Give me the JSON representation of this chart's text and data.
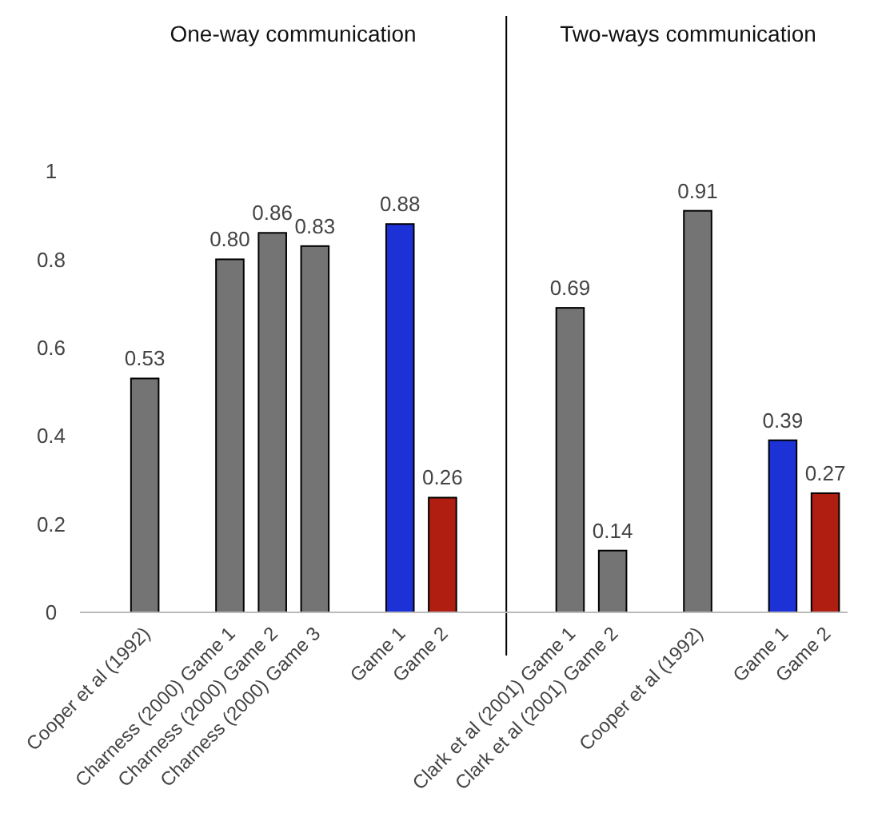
{
  "chart_data": {
    "type": "bar",
    "categories": [
      null,
      "Cooper et al (1992)",
      null,
      "Charness (2000) Game 1",
      "Charness (2000) Game 2",
      "Charness (2000) Game 3",
      null,
      "Game 1",
      "Game 2",
      null,
      null,
      "Clark et al (2001) Game 1",
      "Clark et al (2001) Game 2",
      null,
      "Cooper et al (1992)",
      null,
      "Game 1",
      "Game 2"
    ],
    "values": [
      null,
      0.53,
      null,
      0.8,
      0.86,
      0.83,
      null,
      0.88,
      0.26,
      null,
      null,
      0.69,
      0.14,
      null,
      0.91,
      null,
      0.39,
      0.27
    ],
    "value_labels": [
      null,
      "0.53",
      null,
      "0.80",
      "0.86",
      "0.83",
      null,
      "0.88",
      "0.26",
      null,
      null,
      "0.69",
      "0.14",
      null,
      "0.91",
      null,
      "0.39",
      "0.27"
    ],
    "colors": [
      null,
      "#747474",
      null,
      "#747474",
      "#747474",
      "#747474",
      null,
      "#1c32d6",
      "#b01e12",
      null,
      null,
      "#747474",
      "#747474",
      null,
      "#747474",
      null,
      "#1c32d6",
      "#b01e12"
    ],
    "ylim": [
      0,
      1
    ],
    "yticks": [
      0,
      0.2,
      0.4,
      0.6,
      0.8,
      1
    ],
    "grid": false,
    "annotations": [
      "One-way communication",
      "Two-ways communication"
    ]
  }
}
